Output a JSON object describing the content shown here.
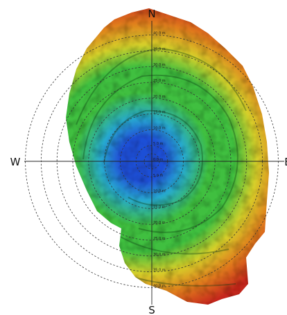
{
  "compass": {
    "north": "N",
    "south": "S",
    "west": "W",
    "east": "E"
  },
  "distance_labels": [
    "0.0 m",
    "5.0 m",
    "10.0 m",
    "15.0 m",
    "20.0 m",
    "25.0 m",
    "30.0 m",
    "35.0 m",
    "40.0 m"
  ],
  "colors": {
    "center_blue": "#1f4fd6",
    "cyan": "#27a9cf",
    "green": "#3fbf3f",
    "yellow": "#d6cf2a",
    "orange": "#e07b1c",
    "red": "#c5261b",
    "ring": "#333333",
    "axis": "#222222"
  }
}
